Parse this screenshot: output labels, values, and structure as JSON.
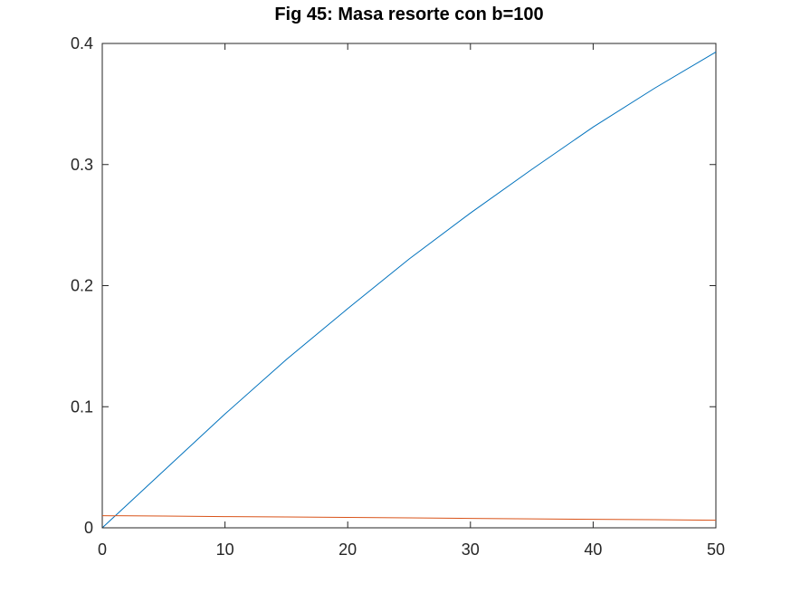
{
  "chart_data": {
    "type": "line",
    "title": "Fig 45: Masa resorte con b=100",
    "xlabel": "",
    "ylabel": "",
    "xlim": [
      0,
      50
    ],
    "ylim": [
      0,
      0.4
    ],
    "x_ticks": [
      "0",
      "10",
      "20",
      "30",
      "40",
      "50"
    ],
    "y_ticks": [
      "0",
      "0.1",
      "0.2",
      "0.3",
      "0.4"
    ],
    "grid": false,
    "legend": "none",
    "series": [
      {
        "color": "#0072BD",
        "x": [
          0,
          5,
          10,
          15,
          20,
          25,
          30,
          35,
          40,
          45,
          50
        ],
        "y": [
          0,
          0.047,
          0.094,
          0.139,
          0.181,
          0.222,
          0.26,
          0.296,
          0.331,
          0.363,
          0.393
        ]
      },
      {
        "color": "#D95319",
        "x": [
          0,
          5,
          10,
          15,
          20,
          25,
          30,
          35,
          40,
          45,
          50
        ],
        "y": [
          0.01,
          0.0097,
          0.0093,
          0.009,
          0.0086,
          0.0082,
          0.0078,
          0.0074,
          0.007,
          0.0067,
          0.0063
        ]
      }
    ]
  }
}
